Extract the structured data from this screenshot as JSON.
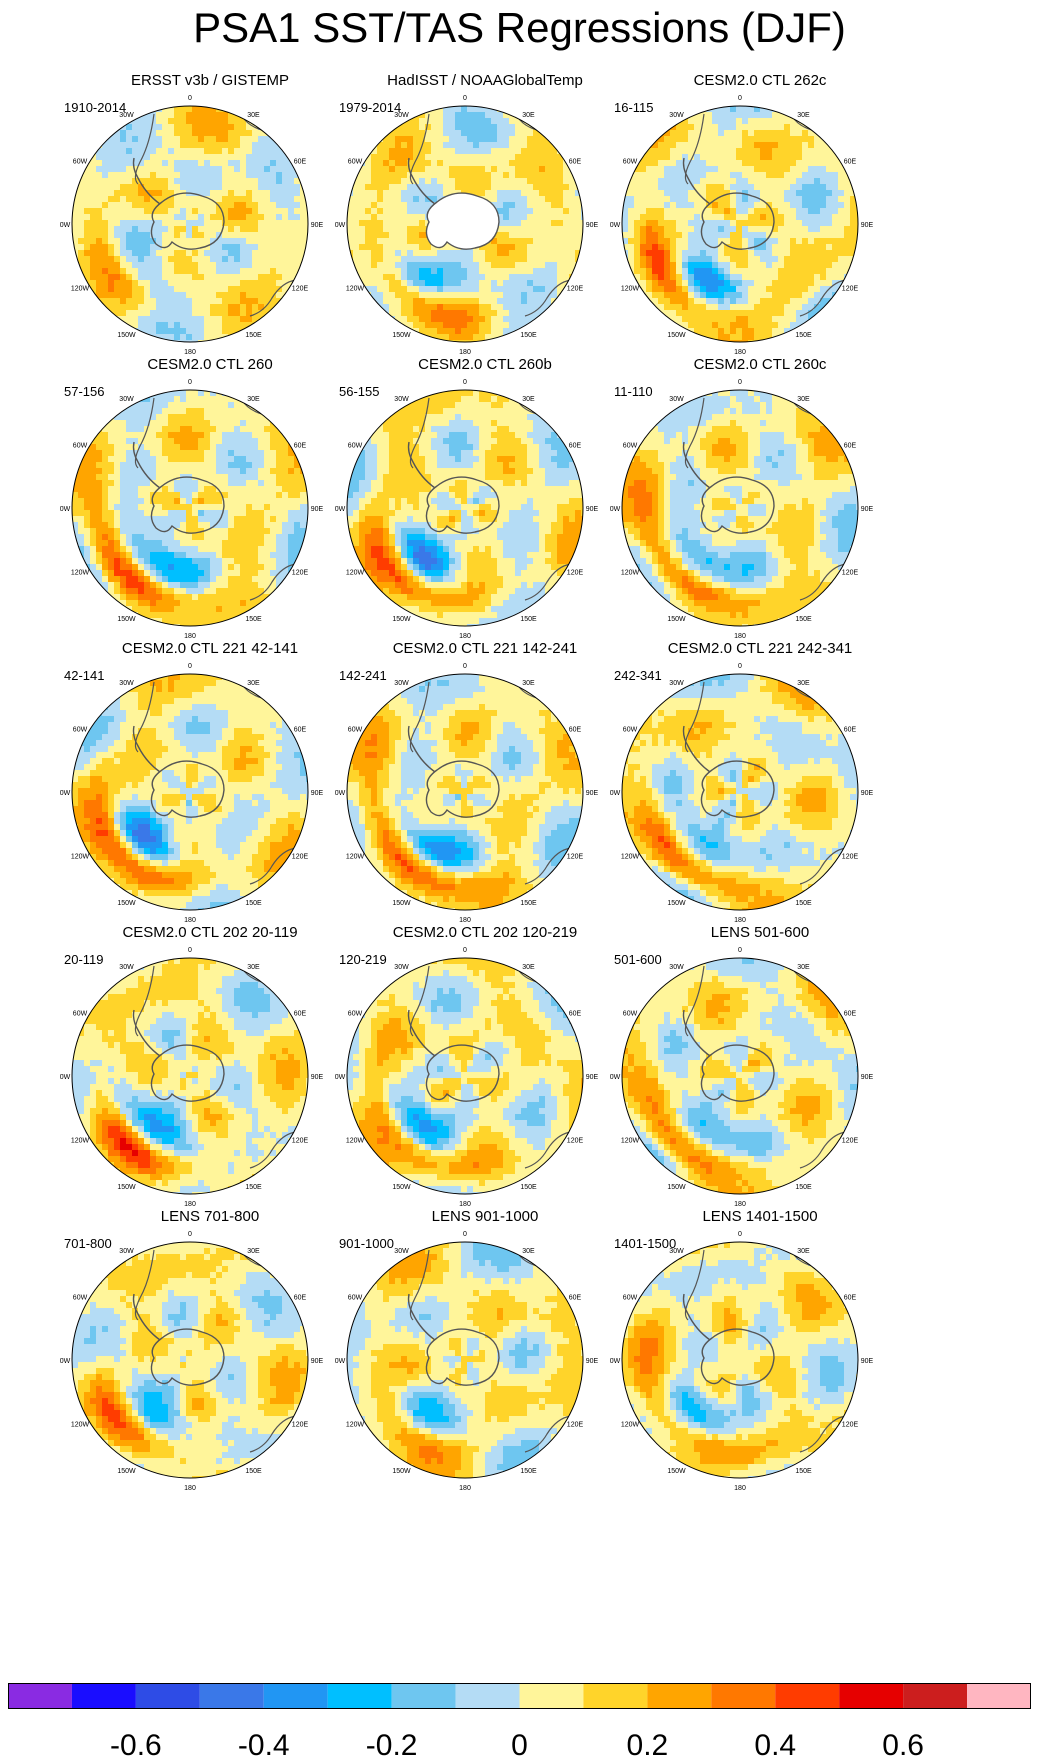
{
  "title": "PSA1 SST/TAS Regressions (DJF)",
  "chart_data": {
    "type": "heatmap",
    "projection": "south-polar-stereographic",
    "longitude_labels": [
      "0",
      "30E",
      "60E",
      "90E",
      "120E",
      "150E",
      "180",
      "150W",
      "120W",
      "90W",
      "60W",
      "30W"
    ],
    "panels": [
      {
        "title": "ERSST v3b / GISTEMP",
        "period": "1910-2014",
        "pattern": 0.35,
        "seed": 11,
        "landmask": false
      },
      {
        "title": "HadISST / NOAAGlobalTemp",
        "period": "1979-2014",
        "pattern": 0.55,
        "seed": 23,
        "landmask": true
      },
      {
        "title": "CESM2.0 CTL 262c",
        "period": "16-115",
        "pattern": 0.8,
        "seed": 5,
        "landmask": false
      },
      {
        "title": "CESM2.0 CTL 260",
        "period": "57-156",
        "pattern": 1.0,
        "seed": 7,
        "landmask": false
      },
      {
        "title": "CESM2.0 CTL 260b",
        "period": "56-155",
        "pattern": 0.85,
        "seed": 19,
        "landmask": false
      },
      {
        "title": "CESM2.0 CTL 260c",
        "period": "11-110",
        "pattern": 0.9,
        "seed": 31,
        "landmask": false
      },
      {
        "title": "CESM2.0 CTL 221 42-141",
        "period": "42-141",
        "pattern": 0.95,
        "seed": 41,
        "landmask": false
      },
      {
        "title": "CESM2.0 CTL 221 142-241",
        "period": "142-241",
        "pattern": 1.0,
        "seed": 53,
        "landmask": false
      },
      {
        "title": "CESM2.0 CTL 221 242-341",
        "period": "242-341",
        "pattern": 0.8,
        "seed": 61,
        "landmask": false
      },
      {
        "title": "CESM2.0 CTL 202 20-119",
        "period": "20-119",
        "pattern": 0.8,
        "seed": 67,
        "landmask": false
      },
      {
        "title": "CESM2.0 CTL 202 120-219",
        "period": "120-219",
        "pattern": 0.75,
        "seed": 71,
        "landmask": false
      },
      {
        "title": "LENS 501-600",
        "period": "501-600",
        "pattern": 0.75,
        "seed": 83,
        "landmask": false
      },
      {
        "title": "LENS 701-800",
        "period": "701-800",
        "pattern": 0.6,
        "seed": 89,
        "landmask": false
      },
      {
        "title": "LENS 901-1000",
        "period": "901-1000",
        "pattern": 0.45,
        "seed": 97,
        "landmask": false
      },
      {
        "title": "LENS 1401-1500",
        "period": "1401-1500",
        "pattern": 0.7,
        "seed": 101,
        "landmask": false
      }
    ],
    "colorbar": {
      "levels": [
        -0.7,
        -0.6,
        -0.5,
        -0.4,
        -0.3,
        -0.2,
        -0.1,
        0,
        0.1,
        0.2,
        0.3,
        0.4,
        0.5,
        0.6,
        0.7
      ],
      "colors": [
        "#8a2be2",
        "#1a0dff",
        "#2e4ce6",
        "#3a78e8",
        "#2196f3",
        "#00bfff",
        "#6ec6f0",
        "#b4dcf5",
        "#fff59a",
        "#ffd42a",
        "#ffa500",
        "#ff7800",
        "#ff3c00",
        "#e60000",
        "#cc1e1e",
        "#ffb6c1"
      ],
      "tick_labels": [
        "-0.6",
        "-0.4",
        "-0.2",
        "0",
        "0.2",
        "0.4",
        "0.6"
      ],
      "tick_values": [
        -0.6,
        -0.4,
        -0.2,
        0,
        0.2,
        0.4,
        0.6
      ]
    }
  }
}
